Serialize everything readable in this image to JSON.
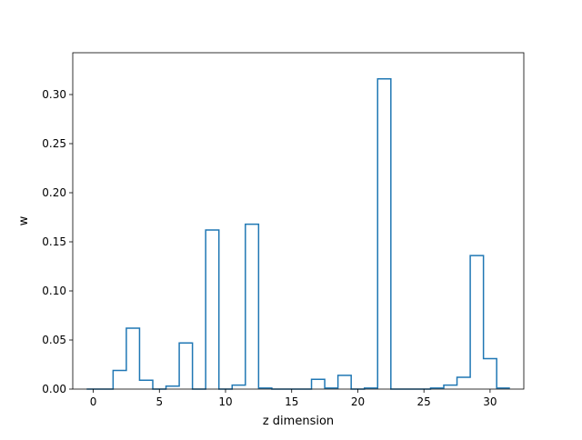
{
  "chart_data": {
    "type": "bar",
    "style": "step-histogram",
    "title": "",
    "xlabel": "z dimension",
    "ylabel": "w",
    "xlim": [
      -1.55,
      32.55
    ],
    "ylim": [
      0.0,
      0.3426
    ],
    "xticks": [
      0,
      5,
      10,
      15,
      20,
      25,
      30
    ],
    "yticks": [
      0.0,
      0.05,
      0.1,
      0.15,
      0.2,
      0.25,
      0.3
    ],
    "ytick_labels": [
      "0.00",
      "0.05",
      "0.10",
      "0.15",
      "0.20",
      "0.25",
      "0.30"
    ],
    "grid": false,
    "legend": "none",
    "line_color": "#1f77b4",
    "categories": [
      0,
      1,
      2,
      3,
      4,
      5,
      6,
      7,
      8,
      9,
      10,
      11,
      12,
      13,
      14,
      15,
      16,
      17,
      18,
      19,
      20,
      21,
      22,
      23,
      24,
      25,
      26,
      27,
      28,
      29,
      30,
      31
    ],
    "values": [
      0.0,
      0.0,
      0.019,
      0.062,
      0.009,
      0.0,
      0.003,
      0.047,
      0.0,
      0.162,
      0.0,
      0.004,
      0.168,
      0.001,
      0.0,
      0.0,
      0.0,
      0.01,
      0.001,
      0.014,
      0.0,
      0.001,
      0.316,
      0.0,
      0.0,
      0.0,
      0.001,
      0.004,
      0.012,
      0.136,
      0.031,
      0.001
    ]
  }
}
